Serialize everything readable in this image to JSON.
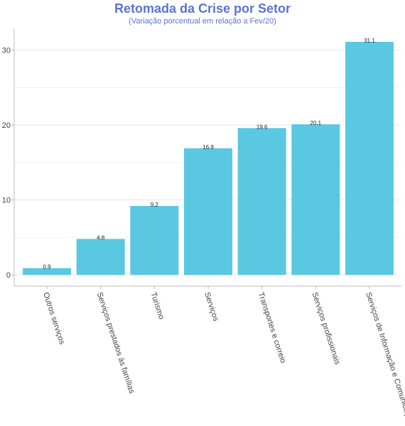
{
  "chart_data": {
    "type": "bar",
    "title": "Retomada da Crise por Setor",
    "subtitle": "(Variação porcentual em relação a Fev/20)",
    "categories": [
      "Outros serviços",
      "Serviços prestados às famílias",
      "Turismo",
      "Serviços",
      "Transportes e correio",
      "Serviços profissionais",
      "Serviços de Informação e Comunicação"
    ],
    "values": [
      0.9,
      4.8,
      9.2,
      16.9,
      19.6,
      20.1,
      31.1
    ],
    "data_labels": [
      "0.9",
      "4.8",
      "9.2",
      "16.9",
      "19.6",
      "20.1",
      "31.1"
    ],
    "yticks": [
      0,
      10,
      20,
      30
    ],
    "ylim": [
      -1.5,
      32.9
    ],
    "bar_color": "#5bc8e1",
    "grid": true
  }
}
